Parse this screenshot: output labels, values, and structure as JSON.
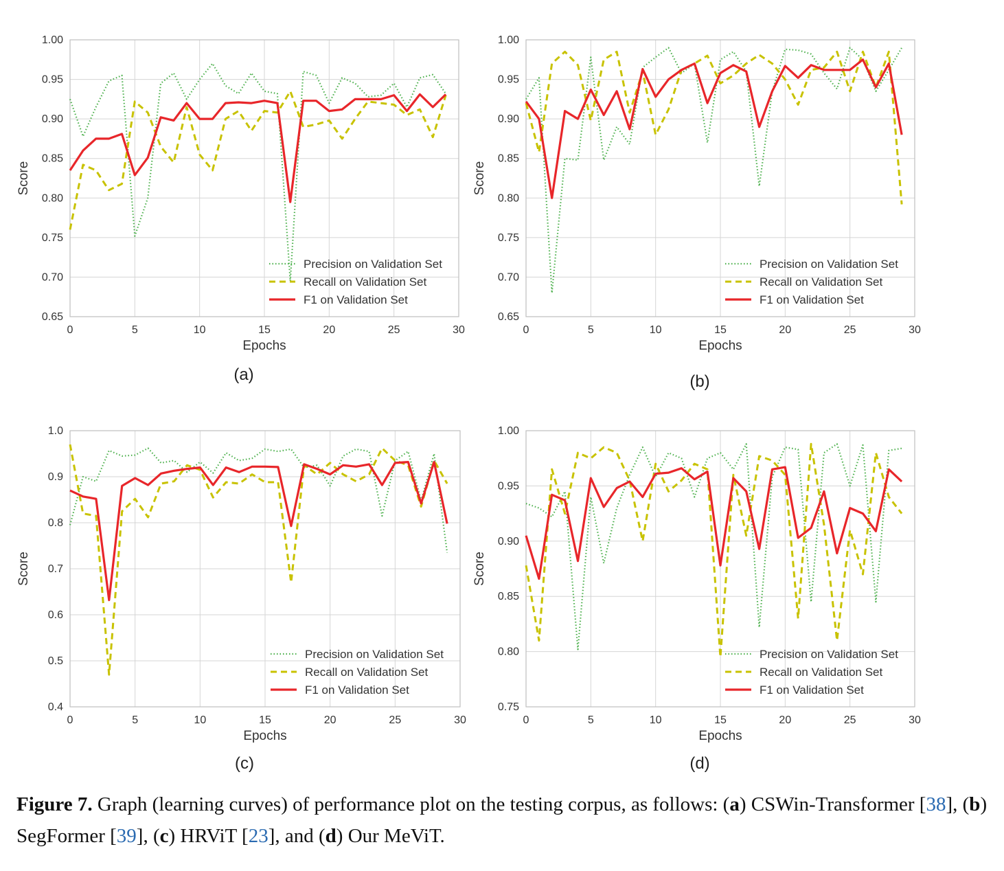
{
  "chart_data": [
    {
      "type": "line",
      "panel_label": "(a)",
      "xlabel": "Epochs",
      "ylabel": "Score",
      "xlim": [
        0,
        30
      ],
      "ylim": [
        0.65,
        1.0
      ],
      "xticks": [
        "0",
        "5",
        "10",
        "15",
        "20",
        "25",
        "30"
      ],
      "yticks": [
        "0.65",
        "0.70",
        "0.75",
        "0.80",
        "0.85",
        "0.90",
        "0.95",
        "1.00"
      ],
      "grid": true,
      "legend_position": "lower-right",
      "x": [
        0,
        1,
        2,
        3,
        4,
        5,
        6,
        7,
        8,
        9,
        10,
        11,
        12,
        13,
        14,
        15,
        16,
        17,
        18,
        19,
        20,
        21,
        22,
        23,
        24,
        25,
        26,
        27,
        28,
        29
      ],
      "series": [
        {
          "name": "Precision on Validation Set",
          "style": "dotted",
          "color": "#4cb04c",
          "values": [
            0.925,
            0.878,
            0.915,
            0.948,
            0.955,
            0.752,
            0.8,
            0.945,
            0.958,
            0.925,
            0.95,
            0.97,
            0.942,
            0.932,
            0.958,
            0.935,
            0.932,
            0.695,
            0.96,
            0.955,
            0.92,
            0.952,
            0.945,
            0.928,
            0.93,
            0.945,
            0.915,
            0.952,
            0.956,
            0.932
          ]
        },
        {
          "name": "Recall on Validation Set",
          "style": "dashed",
          "color": "#c8c200",
          "values": [
            0.76,
            0.842,
            0.835,
            0.81,
            0.818,
            0.922,
            0.908,
            0.865,
            0.845,
            0.915,
            0.855,
            0.835,
            0.9,
            0.91,
            0.885,
            0.91,
            0.908,
            0.935,
            0.89,
            0.893,
            0.898,
            0.875,
            0.9,
            0.922,
            0.92,
            0.918,
            0.905,
            0.912,
            0.877,
            0.93
          ]
        },
        {
          "name": "F1 on Validation Set",
          "style": "solid",
          "color": "#e8262a",
          "values": [
            0.835,
            0.86,
            0.875,
            0.875,
            0.881,
            0.829,
            0.851,
            0.902,
            0.898,
            0.92,
            0.9,
            0.9,
            0.92,
            0.921,
            0.92,
            0.923,
            0.92,
            0.795,
            0.923,
            0.923,
            0.91,
            0.912,
            0.925,
            0.925,
            0.925,
            0.93,
            0.91,
            0.931,
            0.915,
            0.931
          ]
        }
      ]
    },
    {
      "type": "line",
      "panel_label": "(b)",
      "xlabel": "Epochs",
      "ylabel": "Score",
      "xlim": [
        0,
        30
      ],
      "ylim": [
        0.65,
        1.0
      ],
      "xticks": [
        "0",
        "5",
        "10",
        "15",
        "20",
        "25",
        "30"
      ],
      "yticks": [
        "0.65",
        "0.70",
        "0.75",
        "0.80",
        "0.85",
        "0.90",
        "0.95",
        "1.00"
      ],
      "grid": true,
      "legend_position": "lower-right",
      "x": [
        0,
        1,
        2,
        3,
        4,
        5,
        6,
        7,
        8,
        9,
        10,
        11,
        12,
        13,
        14,
        15,
        16,
        17,
        18,
        19,
        20,
        21,
        22,
        23,
        24,
        25,
        26,
        27,
        28,
        29
      ],
      "series": [
        {
          "name": "Precision on Validation Set",
          "style": "dotted",
          "color": "#4cb04c",
          "values": [
            0.925,
            0.952,
            0.68,
            0.85,
            0.848,
            0.978,
            0.848,
            0.89,
            0.868,
            0.965,
            0.978,
            0.99,
            0.958,
            0.97,
            0.87,
            0.975,
            0.985,
            0.96,
            0.815,
            0.935,
            0.988,
            0.987,
            0.982,
            0.958,
            0.938,
            0.99,
            0.975,
            0.935,
            0.962,
            0.99
          ]
        },
        {
          "name": "Recall on Validation Set",
          "style": "dashed",
          "color": "#c8c200",
          "values": [
            0.92,
            0.858,
            0.97,
            0.985,
            0.968,
            0.898,
            0.975,
            0.985,
            0.908,
            0.96,
            0.88,
            0.912,
            0.962,
            0.97,
            0.98,
            0.945,
            0.955,
            0.97,
            0.981,
            0.97,
            0.95,
            0.918,
            0.962,
            0.965,
            0.985,
            0.935,
            0.985,
            0.94,
            0.985,
            0.792
          ]
        },
        {
          "name": "F1 on Validation Set",
          "style": "solid",
          "color": "#e8262a",
          "values": [
            0.922,
            0.9,
            0.8,
            0.91,
            0.9,
            0.937,
            0.905,
            0.935,
            0.887,
            0.963,
            0.928,
            0.95,
            0.962,
            0.97,
            0.92,
            0.958,
            0.968,
            0.96,
            0.89,
            0.935,
            0.967,
            0.952,
            0.968,
            0.962,
            0.962,
            0.962,
            0.975,
            0.94,
            0.97,
            0.88
          ]
        }
      ]
    },
    {
      "type": "line",
      "panel_label": "(c)",
      "xlabel": "Epochs",
      "ylabel": "Score",
      "xlim": [
        0,
        30
      ],
      "ylim": [
        0.4,
        1.0
      ],
      "xticks": [
        "0",
        "5",
        "10",
        "15",
        "20",
        "25",
        "30"
      ],
      "yticks": [
        "0.4",
        "0.5",
        "0.6",
        "0.7",
        "0.8",
        "0.9",
        "1.0"
      ],
      "grid": true,
      "legend_position": "lower-right",
      "x": [
        0,
        1,
        2,
        3,
        4,
        5,
        6,
        7,
        8,
        9,
        10,
        11,
        12,
        13,
        14,
        15,
        16,
        17,
        18,
        19,
        20,
        21,
        22,
        23,
        24,
        25,
        26,
        27,
        28,
        29
      ],
      "series": [
        {
          "name": "Precision on Validation Set",
          "style": "dotted",
          "color": "#4cb04c",
          "values": [
            0.795,
            0.9,
            0.89,
            0.957,
            0.945,
            0.947,
            0.962,
            0.93,
            0.935,
            0.91,
            0.932,
            0.908,
            0.952,
            0.935,
            0.94,
            0.96,
            0.955,
            0.96,
            0.92,
            0.925,
            0.88,
            0.945,
            0.96,
            0.955,
            0.815,
            0.935,
            0.955,
            0.848,
            0.95,
            0.735
          ]
        },
        {
          "name": "Recall on Validation Set",
          "style": "dashed",
          "color": "#c8c200",
          "values": [
            0.97,
            0.82,
            0.815,
            0.47,
            0.825,
            0.852,
            0.812,
            0.885,
            0.89,
            0.925,
            0.915,
            0.855,
            0.888,
            0.885,
            0.905,
            0.888,
            0.888,
            0.67,
            0.925,
            0.905,
            0.93,
            0.905,
            0.89,
            0.905,
            0.962,
            0.935,
            0.925,
            0.835,
            0.935,
            0.885
          ]
        },
        {
          "name": "F1 on Validation Set",
          "style": "solid",
          "color": "#e8262a",
          "values": [
            0.87,
            0.857,
            0.852,
            0.632,
            0.88,
            0.897,
            0.882,
            0.907,
            0.913,
            0.917,
            0.92,
            0.882,
            0.92,
            0.91,
            0.922,
            0.922,
            0.921,
            0.793,
            0.927,
            0.917,
            0.905,
            0.925,
            0.922,
            0.927,
            0.882,
            0.93,
            0.932,
            0.842,
            0.932,
            0.798
          ]
        }
      ]
    },
    {
      "type": "line",
      "panel_label": "(d)",
      "xlabel": "Epochs",
      "ylabel": "Score",
      "xlim": [
        0,
        30
      ],
      "ylim": [
        0.75,
        1.0
      ],
      "xticks": [
        "0",
        "5",
        "10",
        "15",
        "20",
        "25",
        "30"
      ],
      "yticks": [
        "0.75",
        "0.80",
        "0.85",
        "0.90",
        "0.95",
        "1.00"
      ],
      "grid": true,
      "legend_position": "lower-right",
      "x": [
        0,
        1,
        2,
        3,
        4,
        5,
        6,
        7,
        8,
        9,
        10,
        11,
        12,
        13,
        14,
        15,
        16,
        17,
        18,
        19,
        20,
        21,
        22,
        23,
        24,
        25,
        26,
        27,
        28,
        29
      ],
      "series": [
        {
          "name": "Precision on Validation Set",
          "style": "dotted",
          "color": "#4cb04c",
          "values": [
            0.934,
            0.93,
            0.922,
            0.945,
            0.802,
            0.94,
            0.88,
            0.93,
            0.96,
            0.985,
            0.958,
            0.98,
            0.975,
            0.94,
            0.975,
            0.98,
            0.965,
            0.988,
            0.822,
            0.958,
            0.985,
            0.983,
            0.845,
            0.98,
            0.988,
            0.95,
            0.987,
            0.845,
            0.982,
            0.984
          ]
        },
        {
          "name": "Recall on Validation Set",
          "style": "dashed",
          "color": "#c8c200",
          "values": [
            0.878,
            0.81,
            0.965,
            0.925,
            0.98,
            0.975,
            0.985,
            0.98,
            0.955,
            0.9,
            0.97,
            0.945,
            0.955,
            0.97,
            0.965,
            0.795,
            0.96,
            0.905,
            0.977,
            0.973,
            0.96,
            0.83,
            0.988,
            0.915,
            0.81,
            0.91,
            0.87,
            0.98,
            0.94,
            0.925
          ]
        },
        {
          "name": "F1 on Validation Set",
          "style": "solid",
          "color": "#e8262a",
          "values": [
            0.905,
            0.866,
            0.942,
            0.937,
            0.882,
            0.957,
            0.931,
            0.948,
            0.954,
            0.94,
            0.961,
            0.962,
            0.966,
            0.956,
            0.963,
            0.878,
            0.957,
            0.945,
            0.893,
            0.965,
            0.967,
            0.903,
            0.912,
            0.945,
            0.889,
            0.93,
            0.925,
            0.909,
            0.965,
            0.954
          ]
        }
      ]
    }
  ],
  "caption": {
    "figure_label": "Figure 7.",
    "text_1": " Graph (learning curves) of performance plot on the testing corpus, as follows: (",
    "a": "a",
    "text_2": ") CSWin-Transformer [",
    "ref_a": "38",
    "text_3": "], (",
    "b": "b",
    "text_4": ") SegFormer [",
    "ref_b": "39",
    "text_5": "], (",
    "c": "c",
    "text_6": ") HRViT [",
    "ref_c": "23",
    "text_7": "], and (",
    "d": "d",
    "text_8": ") Our MeViT."
  }
}
